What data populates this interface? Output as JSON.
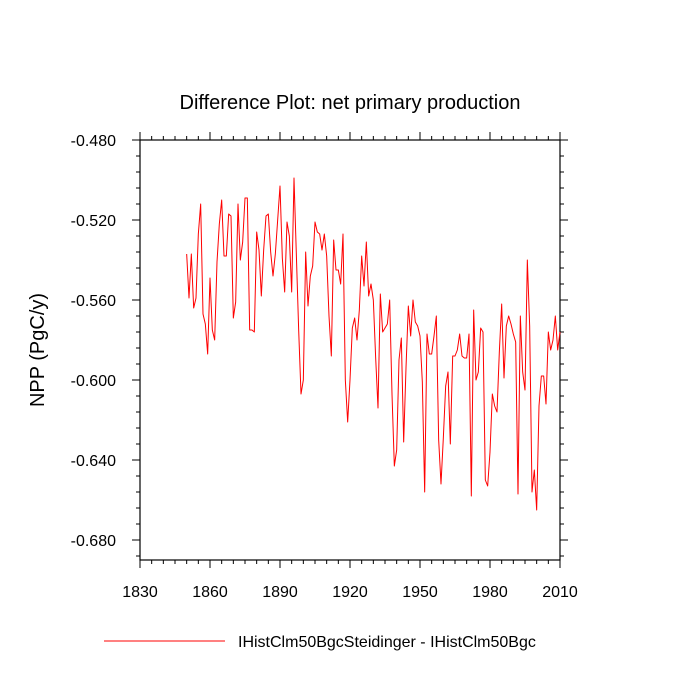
{
  "chart_data": {
    "type": "line",
    "title": "Difference Plot: net primary production",
    "ylabel": "NPP  (PgC/y)",
    "xlabel": "",
    "xlim": [
      1830,
      2010
    ],
    "ylim": [
      -0.69,
      -0.48
    ],
    "x_ticks": [
      "1830",
      "1860",
      "1890",
      "1920",
      "1950",
      "1980",
      "2010"
    ],
    "y_ticks": [
      "-0.480",
      "-0.520",
      "-0.560",
      "-0.600",
      "-0.640",
      "-0.680"
    ],
    "grid": false,
    "legend_position": "bottom",
    "series": [
      {
        "name": "IHistClm50BgcSteidinger - IHistClm50Bgc",
        "color": "#ff0000",
        "start_year": 1850,
        "values": [
          -0.537,
          -0.559,
          -0.537,
          -0.564,
          -0.559,
          -0.527,
          -0.512,
          -0.567,
          -0.572,
          -0.587,
          -0.549,
          -0.575,
          -0.58,
          -0.541,
          -0.522,
          -0.51,
          -0.538,
          -0.538,
          -0.517,
          -0.518,
          -0.569,
          -0.561,
          -0.512,
          -0.54,
          -0.531,
          -0.509,
          -0.509,
          -0.575,
          -0.575,
          -0.576,
          -0.526,
          -0.535,
          -0.558,
          -0.535,
          -0.518,
          -0.517,
          -0.536,
          -0.548,
          -0.537,
          -0.52,
          -0.503,
          -0.539,
          -0.556,
          -0.521,
          -0.528,
          -0.556,
          -0.499,
          -0.537,
          -0.575,
          -0.607,
          -0.6,
          -0.536,
          -0.563,
          -0.548,
          -0.543,
          -0.521,
          -0.526,
          -0.527,
          -0.535,
          -0.527,
          -0.538,
          -0.568,
          -0.588,
          -0.53,
          -0.545,
          -0.545,
          -0.552,
          -0.527,
          -0.6,
          -0.621,
          -0.6,
          -0.574,
          -0.569,
          -0.58,
          -0.565,
          -0.538,
          -0.553,
          -0.531,
          -0.558,
          -0.552,
          -0.56,
          -0.589,
          -0.614,
          -0.557,
          -0.576,
          -0.574,
          -0.572,
          -0.56,
          -0.607,
          -0.643,
          -0.635,
          -0.59,
          -0.579,
          -0.631,
          -0.594,
          -0.563,
          -0.578,
          -0.56,
          -0.571,
          -0.573,
          -0.578,
          -0.601,
          -0.656,
          -0.577,
          -0.587,
          -0.587,
          -0.578,
          -0.568,
          -0.63,
          -0.652,
          -0.629,
          -0.603,
          -0.596,
          -0.632,
          -0.588,
          -0.588,
          -0.585,
          -0.577,
          -0.588,
          -0.589,
          -0.589,
          -0.577,
          -0.658,
          -0.565,
          -0.6,
          -0.596,
          -0.574,
          -0.576,
          -0.65,
          -0.653,
          -0.636,
          -0.607,
          -0.613,
          -0.616,
          -0.586,
          -0.562,
          -0.599,
          -0.573,
          -0.568,
          -0.572,
          -0.577,
          -0.581,
          -0.657,
          -0.568,
          -0.596,
          -0.605,
          -0.54,
          -0.573,
          -0.656,
          -0.645,
          -0.665,
          -0.613,
          -0.598,
          -0.598,
          -0.612,
          -0.576,
          -0.585,
          -0.58,
          -0.568,
          -0.585,
          -0.576
        ]
      }
    ]
  }
}
